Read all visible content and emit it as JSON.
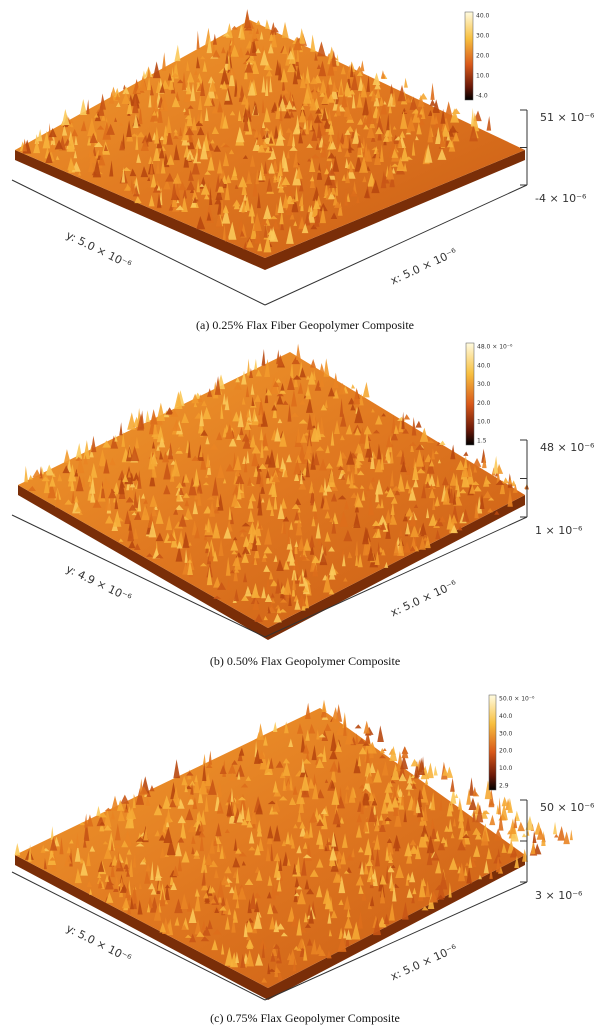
{
  "panels": [
    {
      "colorbar_ticks": [
        "40.0",
        "30.0",
        "20.0",
        "10.0",
        "-4.0"
      ],
      "z_labels": [
        "51 × 10⁻⁶",
        "-4 × 10⁻⁶"
      ],
      "y_label": "y: 5.0 × 10⁻⁶",
      "x_label": "x: 5.0 × 10⁻⁶",
      "caption": "(a) 0.25% Flax Fiber Geopolymer Composite"
    },
    {
      "colorbar_ticks": [
        "48.0 × 10⁻⁶",
        "40.0",
        "30.0",
        "20.0",
        "10.0",
        "1.5"
      ],
      "z_labels": [
        "48 × 10⁻⁶",
        "1 × 10⁻⁶"
      ],
      "y_label": "y: 4.9 × 10⁻⁶",
      "x_label": "x: 5.0 × 10⁻⁶",
      "caption": "(b) 0.50% Flax Geopolymer Composite"
    },
    {
      "colorbar_ticks": [
        "50.0 × 10⁻⁶",
        "40.0",
        "30.0",
        "20.0",
        "10.0",
        "2.9"
      ],
      "z_labels": [
        "50 × 10⁻⁶",
        "3 × 10⁻⁶"
      ],
      "y_label": "y: 5.0 × 10⁻⁶",
      "x_label": "x: 5.0 × 10⁻⁶",
      "caption": "(c) 0.75% Flax Geopolymer Composite"
    }
  ]
}
